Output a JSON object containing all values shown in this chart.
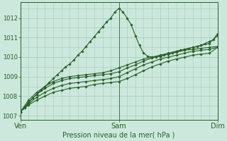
{
  "bg_color": "#cce8dc",
  "grid_color": "#a0ccb8",
  "line_color": "#2a5e2a",
  "marker_color": "#2a5e2a",
  "xlabel": "Pression niveau de la mer( hPa )",
  "ylim": [
    1006.8,
    1012.8
  ],
  "yticks": [
    1007,
    1008,
    1009,
    1010,
    1011,
    1012
  ],
  "xtick_labels": [
    "Ven",
    "Sam",
    "Dim"
  ],
  "xtick_positions": [
    0,
    48,
    96
  ],
  "series": [
    {
      "x": [
        0,
        4,
        8,
        12,
        16,
        20,
        24,
        28,
        32,
        36,
        40,
        44,
        48,
        52,
        56,
        60,
        64,
        68,
        72,
        76,
        80,
        84,
        88,
        92,
        96
      ],
      "y": [
        1007.2,
        1007.55,
        1007.8,
        1008.0,
        1008.2,
        1008.3,
        1008.4,
        1008.45,
        1008.5,
        1008.6,
        1008.65,
        1008.7,
        1008.75,
        1008.9,
        1009.1,
        1009.3,
        1009.5,
        1009.65,
        1009.8,
        1009.9,
        1010.0,
        1010.1,
        1010.15,
        1010.2,
        1010.5
      ],
      "markers": [
        0,
        1,
        2,
        3,
        4,
        5,
        6,
        7,
        8,
        9,
        10,
        11,
        12,
        14,
        16,
        18,
        20,
        22,
        24
      ]
    },
    {
      "x": [
        0,
        4,
        8,
        12,
        16,
        20,
        24,
        28,
        32,
        36,
        40,
        44,
        48,
        52,
        56,
        60,
        64,
        68,
        72,
        76,
        80,
        84,
        88,
        92,
        96
      ],
      "y": [
        1007.2,
        1007.6,
        1007.95,
        1008.2,
        1008.4,
        1008.55,
        1008.65,
        1008.7,
        1008.75,
        1008.8,
        1008.85,
        1008.9,
        1009.0,
        1009.2,
        1009.4,
        1009.6,
        1009.75,
        1009.9,
        1010.0,
        1010.1,
        1010.2,
        1010.3,
        1010.35,
        1010.4,
        1010.5
      ],
      "markers": [
        0,
        1,
        2,
        3,
        4,
        5,
        6,
        7,
        8,
        9,
        10,
        11,
        12,
        14,
        16,
        18,
        20
      ]
    },
    {
      "x": [
        0,
        4,
        8,
        12,
        16,
        20,
        24,
        28,
        32,
        36,
        40,
        44,
        48,
        52,
        56,
        60,
        64,
        68,
        72,
        76,
        80,
        84,
        88,
        92,
        96
      ],
      "y": [
        1007.2,
        1007.7,
        1008.1,
        1008.4,
        1008.65,
        1008.8,
        1008.9,
        1008.95,
        1009.0,
        1009.05,
        1009.1,
        1009.15,
        1009.25,
        1009.45,
        1009.6,
        1009.8,
        1009.95,
        1010.05,
        1010.15,
        1010.25,
        1010.35,
        1010.4,
        1010.45,
        1010.5,
        1010.55
      ],
      "markers": [
        0,
        1,
        2,
        3,
        4,
        5,
        6,
        7,
        8,
        9,
        10,
        11,
        12,
        14,
        16,
        18,
        20
      ]
    },
    {
      "x": [
        0,
        2,
        4,
        6,
        8,
        10,
        12,
        14,
        16,
        18,
        20,
        22,
        24,
        26,
        28,
        30,
        32,
        34,
        36,
        38,
        40,
        42,
        44,
        46,
        48,
        50,
        52,
        54,
        56,
        58,
        60,
        62,
        64,
        66,
        68,
        70,
        72,
        74,
        76,
        78,
        80,
        82,
        84,
        86,
        88,
        90,
        92,
        94,
        96
      ],
      "y": [
        1007.2,
        1007.4,
        1007.65,
        1007.9,
        1008.1,
        1008.3,
        1008.5,
        1008.7,
        1008.9,
        1009.1,
        1009.3,
        1009.5,
        1009.65,
        1009.85,
        1010.1,
        1010.3,
        1010.55,
        1010.8,
        1011.05,
        1011.3,
        1011.55,
        1011.8,
        1012.0,
        1012.3,
        1012.5,
        1012.3,
        1012.0,
        1011.65,
        1011.1,
        1010.6,
        1010.2,
        1010.05,
        1010.0,
        1010.0,
        1010.05,
        1010.1,
        1010.15,
        1010.2,
        1010.3,
        1010.35,
        1010.4,
        1010.45,
        1010.5,
        1010.55,
        1010.6,
        1010.7,
        1010.8,
        1010.9,
        1011.2
      ],
      "markers": [
        0,
        1,
        2,
        3,
        4,
        5,
        6,
        7,
        8,
        9,
        10,
        11,
        12,
        13,
        14,
        15,
        16,
        17,
        18,
        19,
        20,
        21,
        22,
        23,
        24,
        25,
        26,
        27,
        28,
        29,
        30,
        31,
        32,
        33,
        34,
        35,
        36
      ]
    },
    {
      "x": [
        0,
        4,
        8,
        12,
        16,
        20,
        24,
        28,
        32,
        36,
        40,
        44,
        48,
        52,
        56,
        60,
        64,
        68,
        72,
        76,
        80,
        84,
        88,
        92,
        96
      ],
      "y": [
        1007.2,
        1007.8,
        1008.2,
        1008.5,
        1008.75,
        1008.9,
        1009.0,
        1009.05,
        1009.1,
        1009.15,
        1009.2,
        1009.3,
        1009.45,
        1009.6,
        1009.75,
        1009.9,
        1010.0,
        1010.1,
        1010.2,
        1010.3,
        1010.4,
        1010.5,
        1010.6,
        1010.7,
        1011.1
      ],
      "markers": [
        0,
        1,
        2,
        3,
        4,
        5,
        6,
        7,
        8,
        9,
        10,
        11,
        12,
        14,
        16,
        18,
        20
      ]
    }
  ]
}
